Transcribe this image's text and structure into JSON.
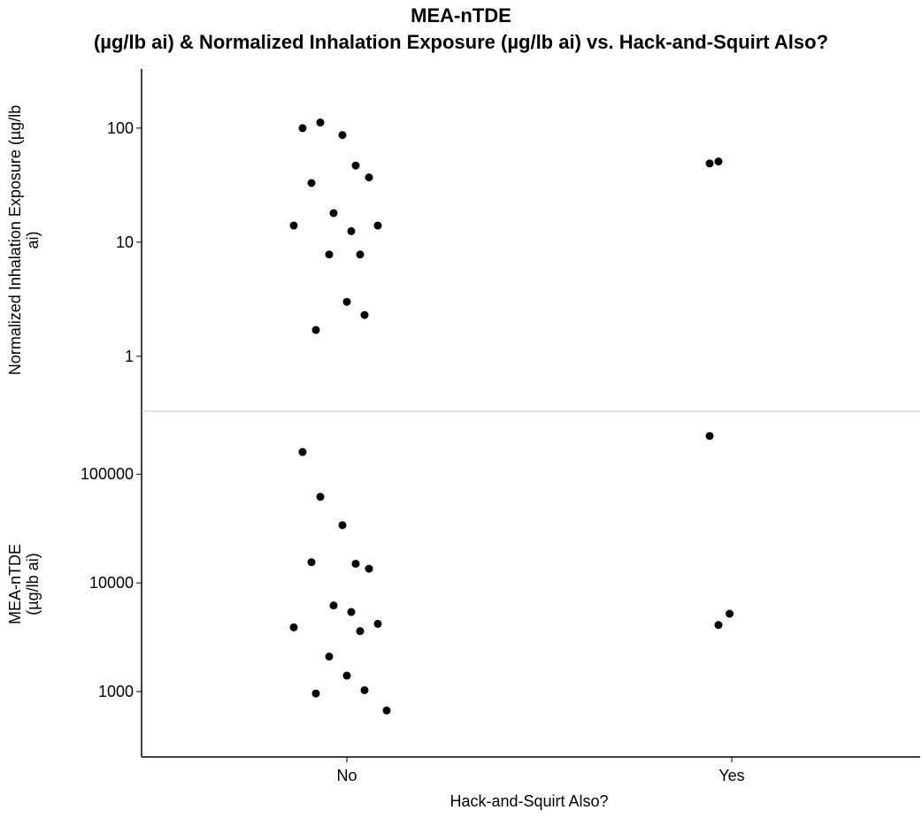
{
  "title_line1": "MEA-nTDE",
  "title_line2": "(µg/lb ai) & Normalized Inhalation Exposure (µg/lb ai) vs. Hack-and-Squirt Also?",
  "chart_data": [
    {
      "type": "scatter",
      "ylabel_lines": [
        "Normalized Inhalation Exposure (µg/lb",
        "ai)"
      ],
      "yscale": "log",
      "ylim": [
        0.33,
        330
      ],
      "yticks": [
        1,
        10,
        100
      ],
      "ytick_labels": [
        "1",
        "10",
        "100"
      ],
      "categories": [
        "No",
        "Yes"
      ],
      "points": [
        {
          "x": "No",
          "y": 100
        },
        {
          "x": "No",
          "y": 112
        },
        {
          "x": "No",
          "y": 87
        },
        {
          "x": "No",
          "y": 47
        },
        {
          "x": "No",
          "y": 37
        },
        {
          "x": "No",
          "y": 33
        },
        {
          "x": "No",
          "y": 18
        },
        {
          "x": "No",
          "y": 12.5
        },
        {
          "x": "No",
          "y": 14
        },
        {
          "x": "No",
          "y": 14
        },
        {
          "x": "No",
          "y": 7.8
        },
        {
          "x": "No",
          "y": 7.8
        },
        {
          "x": "No",
          "y": 3.0
        },
        {
          "x": "No",
          "y": 2.3
        },
        {
          "x": "No",
          "y": 1.7
        },
        {
          "x": "Yes",
          "y": 49
        },
        {
          "x": "Yes",
          "y": 51
        }
      ]
    },
    {
      "type": "scatter",
      "ylabel_lines": [
        "MEA-nTDE",
        "(µg/lb ai)"
      ],
      "yscale": "log",
      "ylim": [
        250,
        380000
      ],
      "yticks": [
        1000,
        10000,
        100000
      ],
      "ytick_labels": [
        "1000",
        "10000",
        "100000"
      ],
      "categories": [
        "No",
        "Yes"
      ],
      "points": [
        {
          "x": "No",
          "y": 160000
        },
        {
          "x": "No",
          "y": 62000
        },
        {
          "x": "No",
          "y": 34000
        },
        {
          "x": "No",
          "y": 15000
        },
        {
          "x": "No",
          "y": 13500
        },
        {
          "x": "No",
          "y": 15500
        },
        {
          "x": "No",
          "y": 6200
        },
        {
          "x": "No",
          "y": 5400
        },
        {
          "x": "No",
          "y": 4200
        },
        {
          "x": "No",
          "y": 3900
        },
        {
          "x": "No",
          "y": 3600
        },
        {
          "x": "No",
          "y": 2100
        },
        {
          "x": "No",
          "y": 1400
        },
        {
          "x": "No",
          "y": 1030
        },
        {
          "x": "No",
          "y": 960
        },
        {
          "x": "No",
          "y": 670
        },
        {
          "x": "Yes",
          "y": 225000
        },
        {
          "x": "Yes",
          "y": 4100
        },
        {
          "x": "Yes",
          "y": 5200
        }
      ]
    }
  ],
  "xlabel": "Hack-and-Squirt Also?",
  "xtick_labels": [
    "No",
    "Yes"
  ]
}
